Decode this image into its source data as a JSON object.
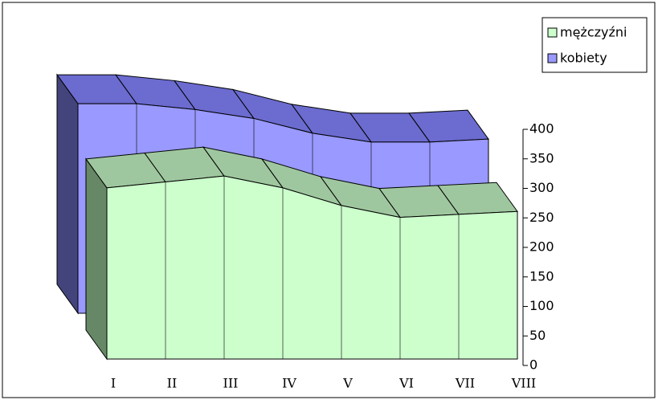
{
  "chart_data": {
    "type": "area3d",
    "categories": [
      "I",
      "II",
      "III",
      "IV",
      "V",
      "VI",
      "VII",
      "VIII"
    ],
    "series": [
      {
        "name": "mężczyźni",
        "color": "#ccffcc",
        "values": [
          290,
          300,
          310,
          290,
          260,
          240,
          245,
          250
        ]
      },
      {
        "name": "kobiety",
        "color": "#9999ff",
        "values": [
          355,
          355,
          345,
          330,
          305,
          290,
          290,
          295
        ]
      }
    ],
    "ylim": [
      0,
      400
    ],
    "yticks": [
      0,
      50,
      100,
      150,
      200,
      250,
      300,
      350,
      400
    ],
    "legend": "top-right"
  }
}
